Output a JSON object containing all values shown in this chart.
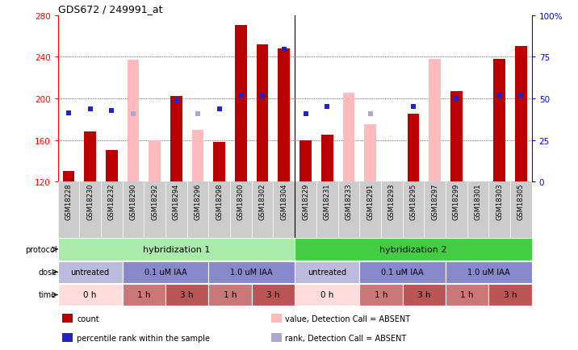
{
  "title": "GDS672 / 249991_at",
  "samples": [
    "GSM18228",
    "GSM18230",
    "GSM18232",
    "GSM18290",
    "GSM18292",
    "GSM18294",
    "GSM18296",
    "GSM18298",
    "GSM18300",
    "GSM18302",
    "GSM18304",
    "GSM18229",
    "GSM18231",
    "GSM18233",
    "GSM18291",
    "GSM18293",
    "GSM18295",
    "GSM18297",
    "GSM18299",
    "GSM18301",
    "GSM18303",
    "GSM18305"
  ],
  "count_values": [
    130,
    168,
    150,
    null,
    null,
    202,
    null,
    158,
    270,
    252,
    248,
    160,
    165,
    null,
    null,
    null,
    185,
    null,
    207,
    null,
    238,
    250
  ],
  "count_absent": [
    null,
    null,
    null,
    237,
    160,
    null,
    170,
    null,
    null,
    null,
    null,
    null,
    null,
    205,
    175,
    null,
    null,
    238,
    null,
    null,
    null,
    null
  ],
  "rank_values": [
    186,
    190,
    188,
    null,
    null,
    198,
    null,
    190,
    203,
    202,
    247,
    185,
    192,
    null,
    null,
    null,
    192,
    null,
    200,
    null,
    202,
    203
  ],
  "rank_absent": [
    null,
    null,
    null,
    185,
    null,
    null,
    185,
    null,
    null,
    null,
    null,
    null,
    null,
    null,
    185,
    null,
    null,
    null,
    null,
    null,
    null,
    null
  ],
  "ylim_left": [
    120,
    280
  ],
  "ylim_right": [
    0,
    100
  ],
  "yticks_left": [
    120,
    160,
    200,
    240,
    280
  ],
  "yticks_right": [
    0,
    25,
    50,
    75,
    100
  ],
  "bar_color_red": "#bb0000",
  "bar_color_pink": "#ffbbbb",
  "dot_color_blue": "#2222cc",
  "dot_color_light_blue": "#aaaacc",
  "protocol_data": [
    {
      "label": "hybridization 1",
      "span": [
        0,
        10
      ],
      "color": "#aaeaaa"
    },
    {
      "label": "hybridization 2",
      "span": [
        11,
        21
      ],
      "color": "#44cc44"
    }
  ],
  "dose_groups": [
    {
      "label": "untreated",
      "span": [
        0,
        2
      ],
      "color": "#bbbbdd"
    },
    {
      "label": "0.1 uM IAA",
      "span": [
        3,
        6
      ],
      "color": "#8888cc"
    },
    {
      "label": "1.0 uM IAA",
      "span": [
        7,
        10
      ],
      "color": "#8888cc"
    },
    {
      "label": "untreated",
      "span": [
        11,
        13
      ],
      "color": "#bbbbdd"
    },
    {
      "label": "0.1 uM IAA",
      "span": [
        14,
        17
      ],
      "color": "#8888cc"
    },
    {
      "label": "1.0 uM IAA",
      "span": [
        18,
        21
      ],
      "color": "#8888cc"
    }
  ],
  "time_groups": [
    {
      "label": "0 h",
      "span": [
        0,
        2
      ],
      "color": "#ffdddd"
    },
    {
      "label": "1 h",
      "span": [
        3,
        4
      ],
      "color": "#cc7777"
    },
    {
      "label": "3 h",
      "span": [
        5,
        6
      ],
      "color": "#bb5555"
    },
    {
      "label": "1 h",
      "span": [
        7,
        8
      ],
      "color": "#cc7777"
    },
    {
      "label": "3 h",
      "span": [
        9,
        10
      ],
      "color": "#bb5555"
    },
    {
      "label": "0 h",
      "span": [
        11,
        13
      ],
      "color": "#ffdddd"
    },
    {
      "label": "1 h",
      "span": [
        14,
        15
      ],
      "color": "#cc7777"
    },
    {
      "label": "3 h",
      "span": [
        16,
        17
      ],
      "color": "#bb5555"
    },
    {
      "label": "1 h",
      "span": [
        18,
        19
      ],
      "color": "#cc7777"
    },
    {
      "label": "3 h",
      "span": [
        20,
        21
      ],
      "color": "#bb5555"
    }
  ],
  "legend_items": [
    {
      "label": "count",
      "color": "#bb0000"
    },
    {
      "label": "percentile rank within the sample",
      "color": "#2222cc"
    },
    {
      "label": "value, Detection Call = ABSENT",
      "color": "#ffbbbb"
    },
    {
      "label": "rank, Detection Call = ABSENT",
      "color": "#aaaacc"
    }
  ],
  "bg_color": "#ffffff",
  "label_bg": "#cccccc"
}
